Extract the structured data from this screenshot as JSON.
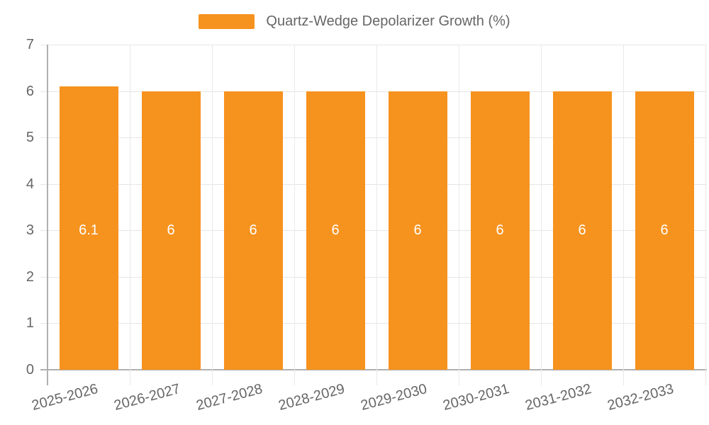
{
  "legend": {
    "label": "Quartz-Wedge Depolarizer Growth (%)",
    "swatch_color": "#f6921e"
  },
  "colors": {
    "bar": "#f6921e",
    "text": "#666666",
    "axis": "#b0b0b0",
    "grid": "#e6e6e6"
  },
  "chart_data": {
    "type": "bar",
    "title": "Quartz-Wedge Depolarizer Growth (%)",
    "categories": [
      "2025-2026",
      "2026-2027",
      "2027-2028",
      "2028-2029",
      "2029-2030",
      "2030-2031",
      "2031-2032",
      "2032-2033"
    ],
    "values": [
      6.1,
      6,
      6,
      6,
      6,
      6,
      6,
      6
    ],
    "bar_labels": [
      "6.1",
      "6",
      "6",
      "6",
      "6",
      "6",
      "6",
      "6"
    ],
    "xlabel": "",
    "ylabel": "",
    "ylim": [
      0,
      7
    ],
    "yticks": [
      0,
      1,
      2,
      3,
      4,
      5,
      6,
      7
    ],
    "grid": true,
    "legend_position": "top",
    "series_color": "#f6921e",
    "value_label_color": "#ffffff",
    "value_label_y": 3
  }
}
